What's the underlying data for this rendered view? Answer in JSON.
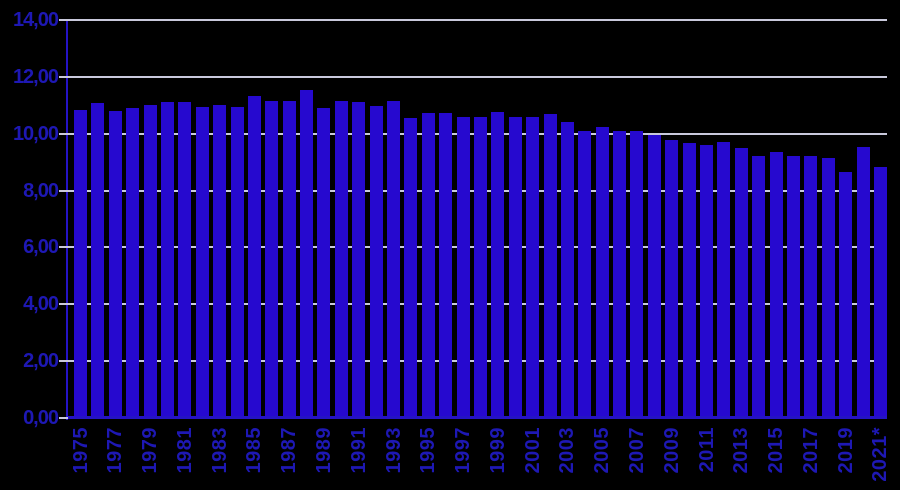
{
  "chart_data": {
    "type": "bar",
    "title": "",
    "xlabel": "",
    "ylabel": "",
    "legend": "none",
    "grid": "horizontal",
    "background_color": "#000000",
    "bar_color": "#2609cf",
    "axis_color": "#2513c4",
    "label_color": "#1e18b4",
    "gridline_color": "#c9c9dc",
    "ylim": [
      0,
      14
    ],
    "yticks": [
      {
        "value": 0,
        "label": "0,00"
      },
      {
        "value": 2,
        "label": "2,00"
      },
      {
        "value": 4,
        "label": "4,00"
      },
      {
        "value": 6,
        "label": "6,00"
      },
      {
        "value": 8,
        "label": "8,00"
      },
      {
        "value": 10,
        "label": "10,00"
      },
      {
        "value": 12,
        "label": "12,00"
      },
      {
        "value": 14,
        "label": "14,00"
      }
    ],
    "xtick_labels_shown": [
      "1975",
      "1977",
      "1979",
      "1981",
      "1983",
      "1985",
      "1987",
      "1989",
      "1991",
      "1993",
      "1995",
      "1997",
      "1999",
      "2001",
      "2003",
      "2005",
      "2007",
      "2009",
      "2011",
      "2013",
      "2015",
      "2017",
      "2019",
      "2021*"
    ],
    "categories": [
      "1975",
      "1976",
      "1977",
      "1978",
      "1979",
      "1980",
      "1981",
      "1982",
      "1983",
      "1984",
      "1985",
      "1986",
      "1987",
      "1988",
      "1989",
      "1990",
      "1991",
      "1992",
      "1993",
      "1994",
      "1995",
      "1996",
      "1997",
      "1998",
      "1999",
      "2000",
      "2001",
      "2002",
      "2003",
      "2004",
      "2005",
      "2006",
      "2007",
      "2008",
      "2009",
      "2010",
      "2011",
      "2012",
      "2013",
      "2014",
      "2015",
      "2016",
      "2017",
      "2018",
      "2019",
      "2020",
      "2021*"
    ],
    "values": [
      10.82,
      11.08,
      10.79,
      10.91,
      11.02,
      11.13,
      11.13,
      10.93,
      11.02,
      10.95,
      11.31,
      11.16,
      11.16,
      11.55,
      10.92,
      11.16,
      11.13,
      10.99,
      11.16,
      10.55,
      10.72,
      10.72,
      10.6,
      10.6,
      10.77,
      10.6,
      10.6,
      10.7,
      10.42,
      10.11,
      10.22,
      10.09,
      10.11,
      9.96,
      9.78,
      9.68,
      9.6,
      9.7,
      9.49,
      9.22,
      9.34,
      9.23,
      9.2,
      9.13,
      8.67,
      9.55,
      8.82
    ]
  }
}
